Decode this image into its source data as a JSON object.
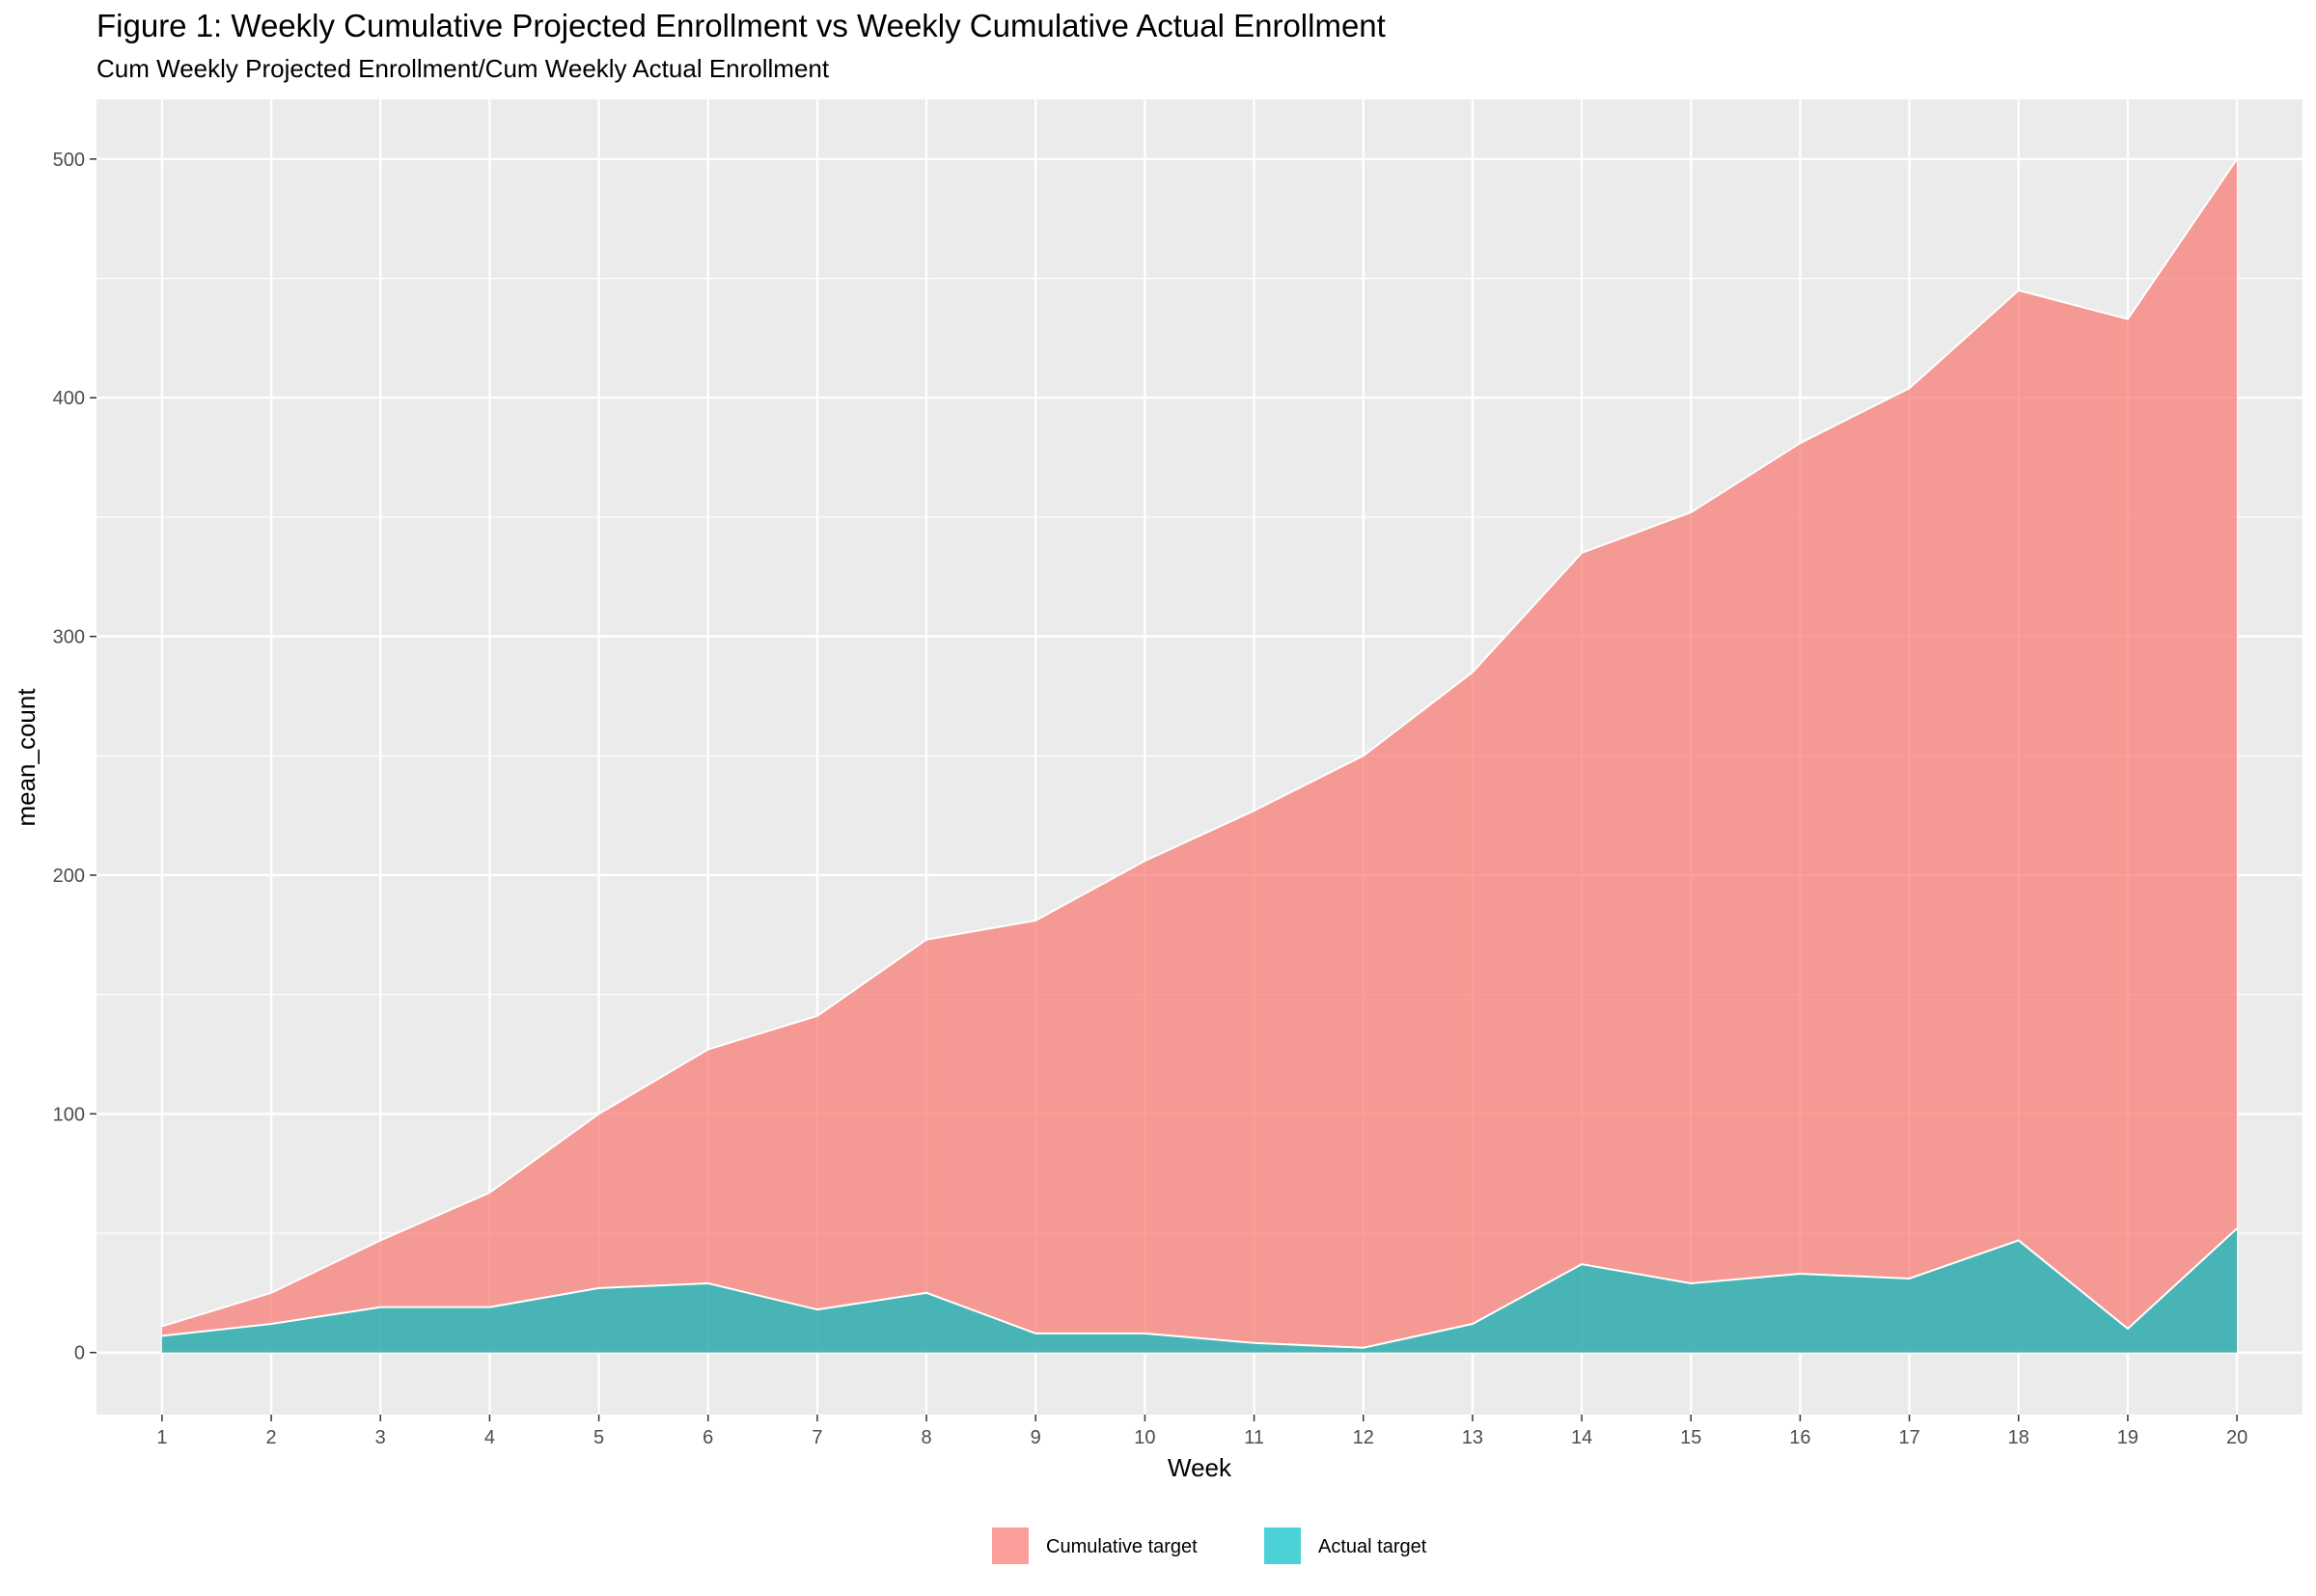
{
  "chart_data": {
    "type": "area",
    "title": "Figure 1: Weekly Cumulative Projected Enrollment vs Weekly Cumulative Actual Enrollment",
    "subtitle": "Cum Weekly Projected Enrollment/Cum Weekly Actual Enrollment",
    "xlabel": "Week",
    "ylabel": "mean_count",
    "x": [
      1,
      2,
      3,
      4,
      5,
      6,
      7,
      8,
      9,
      10,
      11,
      12,
      13,
      14,
      15,
      16,
      17,
      18,
      19,
      20
    ],
    "x_ticks": [
      "1",
      "2",
      "3",
      "4",
      "5",
      "6",
      "7",
      "8",
      "9",
      "10",
      "11",
      "12",
      "13",
      "14",
      "15",
      "16",
      "17",
      "18",
      "19",
      "20"
    ],
    "xlim": [
      0.4,
      20.6
    ],
    "ylim": [
      -26,
      525
    ],
    "y_ticks": [
      0,
      100,
      200,
      300,
      400,
      500
    ],
    "y_tick_labels": [
      "0",
      "100",
      "200",
      "300",
      "400",
      "500"
    ],
    "grid": true,
    "legend_position": "bottom",
    "series": [
      {
        "name": "Cumulative target",
        "color": "#F8766D",
        "values": [
          11,
          25,
          47,
          67,
          100,
          127,
          141,
          173,
          181,
          206,
          227,
          250,
          285,
          335,
          352,
          381,
          404,
          445,
          433,
          500
        ]
      },
      {
        "name": "Actual target",
        "color": "#00BFC4",
        "values": [
          7,
          12,
          19,
          19,
          27,
          29,
          18,
          25,
          8,
          8,
          4,
          2,
          12,
          37,
          29,
          33,
          31,
          47,
          10,
          52
        ]
      }
    ]
  }
}
